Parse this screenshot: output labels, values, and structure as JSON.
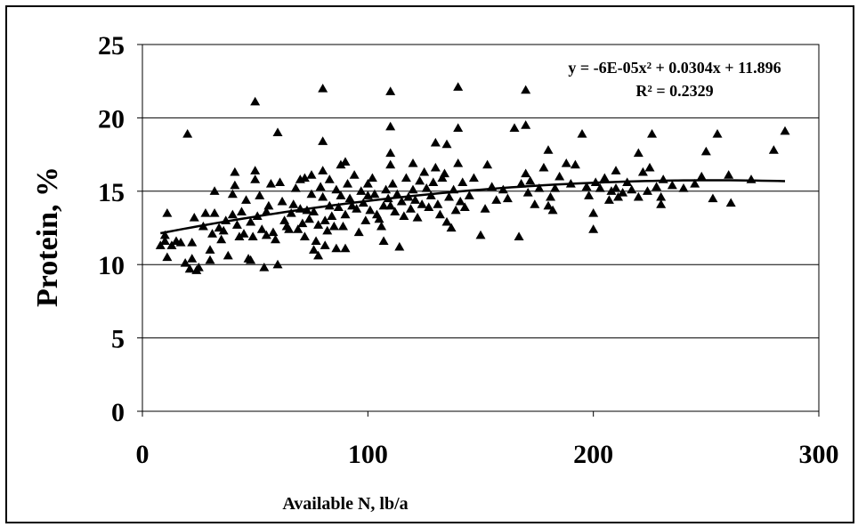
{
  "chart_data": {
    "type": "scatter",
    "title": "",
    "xlabel": "Available N, lb/a",
    "ylabel": "Protein, %",
    "xlim": [
      0,
      300
    ],
    "ylim": [
      0,
      25
    ],
    "x_ticks": [
      "0",
      "100",
      "200",
      "300"
    ],
    "y_ticks": [
      "0",
      "5",
      "10",
      "15",
      "20",
      "25"
    ],
    "grid": "horizontal",
    "marker": "triangle",
    "colors": {
      "marker": "#000000",
      "trendline": "#000000",
      "grid": "#000000"
    },
    "trendline": {
      "type": "polynomial",
      "equation_label": "y = -6E-05x² + 0.0304x + 11.896",
      "r2_label": "R² = 0.2329",
      "coefficients": {
        "a": -6e-05,
        "b": 0.0304,
        "c": 11.896
      },
      "x_range": [
        8,
        285
      ]
    },
    "points": [
      [
        8,
        11.3
      ],
      [
        10,
        11.6
      ],
      [
        10,
        12.0
      ],
      [
        11,
        10.5
      ],
      [
        11,
        13.5
      ],
      [
        13,
        11.3
      ],
      [
        15,
        11.6
      ],
      [
        17,
        11.5
      ],
      [
        19,
        10.1
      ],
      [
        20,
        18.9
      ],
      [
        21,
        9.7
      ],
      [
        22,
        10.4
      ],
      [
        22,
        11.5
      ],
      [
        23,
        13.2
      ],
      [
        24,
        9.6
      ],
      [
        25,
        9.8
      ],
      [
        27,
        12.6
      ],
      [
        28,
        13.5
      ],
      [
        30,
        10.3
      ],
      [
        30,
        11.0
      ],
      [
        31,
        12.1
      ],
      [
        32,
        13.5
      ],
      [
        32,
        15.0
      ],
      [
        34,
        12.5
      ],
      [
        35,
        11.7
      ],
      [
        36,
        12.3
      ],
      [
        37,
        13.0
      ],
      [
        38,
        10.6
      ],
      [
        40,
        13.4
      ],
      [
        40,
        14.8
      ],
      [
        41,
        15.4
      ],
      [
        41,
        16.3
      ],
      [
        42,
        12.7
      ],
      [
        43,
        11.9
      ],
      [
        44,
        13.6
      ],
      [
        45,
        12.1
      ],
      [
        46,
        14.4
      ],
      [
        47,
        10.4
      ],
      [
        48,
        10.3
      ],
      [
        48,
        12.9
      ],
      [
        49,
        11.9
      ],
      [
        50,
        16.4
      ],
      [
        50,
        21.1
      ],
      [
        50,
        15.8
      ],
      [
        51,
        13.3
      ],
      [
        52,
        14.7
      ],
      [
        53,
        12.4
      ],
      [
        54,
        9.8
      ],
      [
        55,
        12.0
      ],
      [
        55,
        13.6
      ],
      [
        56,
        14.0
      ],
      [
        57,
        15.5
      ],
      [
        58,
        12.2
      ],
      [
        59,
        11.7
      ],
      [
        60,
        10.0
      ],
      [
        60,
        19.0
      ],
      [
        61,
        15.6
      ],
      [
        62,
        14.3
      ],
      [
        63,
        13.0
      ],
      [
        64,
        12.6
      ],
      [
        65,
        12.4
      ],
      [
        66,
        13.5
      ],
      [
        67,
        14.1
      ],
      [
        68,
        15.2
      ],
      [
        69,
        12.4
      ],
      [
        70,
        15.8
      ],
      [
        70,
        13.8
      ],
      [
        71,
        12.8
      ],
      [
        72,
        11.9
      ],
      [
        72,
        15.9
      ],
      [
        73,
        13.7
      ],
      [
        74,
        13.1
      ],
      [
        75,
        14.8
      ],
      [
        75,
        16.1
      ],
      [
        76,
        13.6
      ],
      [
        76,
        11.0
      ],
      [
        77,
        11.6
      ],
      [
        78,
        10.6
      ],
      [
        78,
        12.7
      ],
      [
        79,
        15.3
      ],
      [
        80,
        22.0
      ],
      [
        80,
        18.4
      ],
      [
        80,
        16.4
      ],
      [
        80,
        14.6
      ],
      [
        81,
        13.0
      ],
      [
        81,
        11.3
      ],
      [
        82,
        12.3
      ],
      [
        83,
        14.0
      ],
      [
        83,
        15.8
      ],
      [
        84,
        13.3
      ],
      [
        85,
        12.6
      ],
      [
        86,
        11.1
      ],
      [
        86,
        15.1
      ],
      [
        87,
        13.9
      ],
      [
        88,
        14.7
      ],
      [
        88,
        16.8
      ],
      [
        89,
        12.6
      ],
      [
        90,
        17.0
      ],
      [
        90,
        11.1
      ],
      [
        90,
        13.4
      ],
      [
        91,
        15.5
      ],
      [
        92,
        14.5
      ],
      [
        93,
        14.0
      ],
      [
        94,
        16.1
      ],
      [
        95,
        13.8
      ],
      [
        96,
        12.2
      ],
      [
        97,
        15.0
      ],
      [
        98,
        14.2
      ],
      [
        99,
        13.0
      ],
      [
        100,
        15.5
      ],
      [
        100,
        14.7
      ],
      [
        101,
        13.7
      ],
      [
        102,
        15.9
      ],
      [
        103,
        14.8
      ],
      [
        104,
        13.4
      ],
      [
        105,
        13.1
      ],
      [
        106,
        12.6
      ],
      [
        107,
        14.0
      ],
      [
        107,
        11.6
      ],
      [
        108,
        15.1
      ],
      [
        109,
        14.5
      ],
      [
        110,
        21.8
      ],
      [
        110,
        19.4
      ],
      [
        110,
        17.6
      ],
      [
        110,
        16.8
      ],
      [
        110,
        14.0
      ],
      [
        111,
        15.5
      ],
      [
        112,
        13.6
      ],
      [
        113,
        14.8
      ],
      [
        114,
        11.2
      ],
      [
        115,
        14.3
      ],
      [
        116,
        13.3
      ],
      [
        117,
        15.9
      ],
      [
        118,
        14.6
      ],
      [
        119,
        13.8
      ],
      [
        120,
        16.9
      ],
      [
        120,
        15.1
      ],
      [
        121,
        14.4
      ],
      [
        122,
        13.2
      ],
      [
        123,
        15.7
      ],
      [
        124,
        14.1
      ],
      [
        125,
        16.3
      ],
      [
        126,
        15.2
      ],
      [
        127,
        13.9
      ],
      [
        128,
        14.7
      ],
      [
        129,
        15.6
      ],
      [
        130,
        18.3
      ],
      [
        130,
        16.6
      ],
      [
        131,
        14.1
      ],
      [
        132,
        13.4
      ],
      [
        133,
        15.9
      ],
      [
        134,
        16.2
      ],
      [
        135,
        18.2
      ],
      [
        135,
        12.9
      ],
      [
        136,
        14.6
      ],
      [
        137,
        12.5
      ],
      [
        138,
        15.1
      ],
      [
        139,
        13.7
      ],
      [
        140,
        22.1
      ],
      [
        140,
        19.3
      ],
      [
        140,
        16.9
      ],
      [
        141,
        14.3
      ],
      [
        142,
        15.6
      ],
      [
        143,
        13.9
      ],
      [
        145,
        14.7
      ],
      [
        147,
        15.9
      ],
      [
        150,
        12.0
      ],
      [
        152,
        13.8
      ],
      [
        153,
        16.8
      ],
      [
        155,
        15.3
      ],
      [
        157,
        14.4
      ],
      [
        160,
        15.1
      ],
      [
        162,
        14.5
      ],
      [
        165,
        19.3
      ],
      [
        167,
        11.9
      ],
      [
        168,
        15.5
      ],
      [
        170,
        21.9
      ],
      [
        170,
        19.5
      ],
      [
        170,
        16.2
      ],
      [
        171,
        14.9
      ],
      [
        172,
        15.7
      ],
      [
        174,
        14.1
      ],
      [
        176,
        15.2
      ],
      [
        178,
        16.6
      ],
      [
        180,
        17.8
      ],
      [
        180,
        14.0
      ],
      [
        181,
        14.6
      ],
      [
        182,
        13.7
      ],
      [
        183,
        15.2
      ],
      [
        185,
        16.0
      ],
      [
        188,
        16.9
      ],
      [
        190,
        15.5
      ],
      [
        192,
        16.8
      ],
      [
        195,
        18.9
      ],
      [
        197,
        15.3
      ],
      [
        198,
        14.7
      ],
      [
        200,
        12.4
      ],
      [
        200,
        13.5
      ],
      [
        201,
        15.6
      ],
      [
        203,
        15.2
      ],
      [
        205,
        15.9
      ],
      [
        207,
        14.4
      ],
      [
        208,
        15.0
      ],
      [
        210,
        15.2
      ],
      [
        210,
        16.4
      ],
      [
        211,
        14.6
      ],
      [
        213,
        14.9
      ],
      [
        215,
        15.6
      ],
      [
        217,
        15.1
      ],
      [
        220,
        17.6
      ],
      [
        220,
        14.6
      ],
      [
        222,
        16.3
      ],
      [
        224,
        15.0
      ],
      [
        225,
        16.6
      ],
      [
        226,
        18.9
      ],
      [
        228,
        15.3
      ],
      [
        230,
        14.6
      ],
      [
        230,
        14.1
      ],
      [
        231,
        15.8
      ],
      [
        235,
        15.4
      ],
      [
        240,
        15.2
      ],
      [
        245,
        15.5
      ],
      [
        248,
        16.0
      ],
      [
        250,
        17.7
      ],
      [
        253,
        14.5
      ],
      [
        255,
        18.9
      ],
      [
        260,
        16.1
      ],
      [
        261,
        14.2
      ],
      [
        270,
        15.8
      ],
      [
        280,
        17.8
      ],
      [
        285,
        19.1
      ]
    ]
  }
}
